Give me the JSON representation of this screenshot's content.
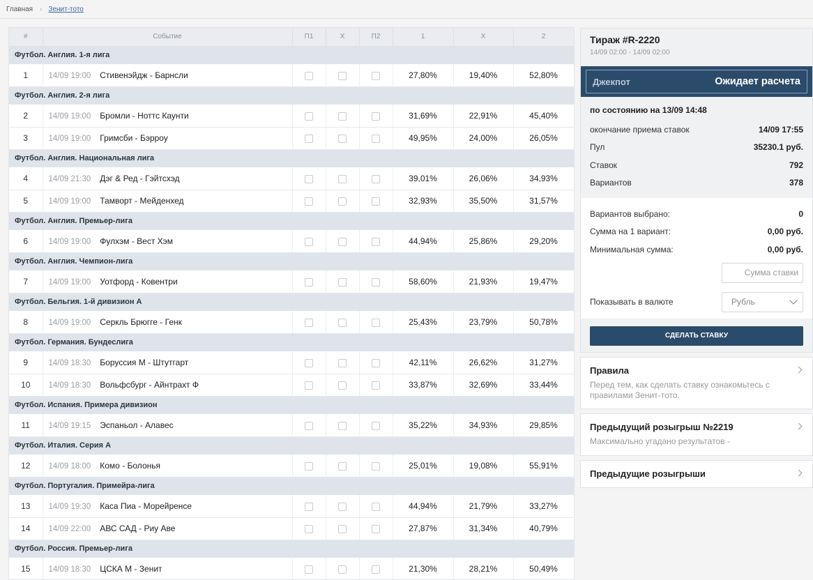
{
  "breadcrumb": {
    "home": "Главная",
    "current": "Зенит-тото"
  },
  "table": {
    "headers": {
      "num": "#",
      "event": "Событие",
      "p1": "П1",
      "x": "X",
      "p2": "П2",
      "c1": "1",
      "cx": "X",
      "c2": "2"
    },
    "groups": [
      {
        "title": "Футбол. Англия. 1-я лига",
        "matches": [
          {
            "n": "1",
            "time": "14/09 19:00",
            "name": "Стивенэйдж - Барнсли",
            "p1": "27,80%",
            "px": "19,40%",
            "p2": "52,80%"
          }
        ]
      },
      {
        "title": "Футбол. Англия. 2-я лига",
        "matches": [
          {
            "n": "2",
            "time": "14/09 19:00",
            "name": "Бромли - Ноттс Каунти",
            "p1": "31,69%",
            "px": "22,91%",
            "p2": "45,40%"
          },
          {
            "n": "3",
            "time": "14/09 19:00",
            "name": "Гримсби - Бэрроу",
            "p1": "49,95%",
            "px": "24,00%",
            "p2": "26,05%"
          }
        ]
      },
      {
        "title": "Футбол. Англия. Национальная лига",
        "matches": [
          {
            "n": "4",
            "time": "14/09 21:30",
            "name": "Дэг & Ред - Гэйтсхэд",
            "p1": "39,01%",
            "px": "26,06%",
            "p2": "34,93%"
          },
          {
            "n": "5",
            "time": "14/09 19:00",
            "name": "Тамворт - Мейденхед",
            "p1": "32,93%",
            "px": "35,50%",
            "p2": "31,57%"
          }
        ]
      },
      {
        "title": "Футбол. Англия. Премьер-лига",
        "matches": [
          {
            "n": "6",
            "time": "14/09 19:00",
            "name": "Фулхэм - Вест Хэм",
            "p1": "44,94%",
            "px": "25,86%",
            "p2": "29,20%"
          }
        ]
      },
      {
        "title": "Футбол. Англия. Чемпион-лига",
        "matches": [
          {
            "n": "7",
            "time": "14/09 19:00",
            "name": "Уотфорд - Ковентри",
            "p1": "58,60%",
            "px": "21,93%",
            "p2": "19,47%"
          }
        ]
      },
      {
        "title": "Футбол. Бельгия. 1-й дивизион А",
        "matches": [
          {
            "n": "8",
            "time": "14/09 19:00",
            "name": "Серкль Брюгге - Генк",
            "p1": "25,43%",
            "px": "23,79%",
            "p2": "50,78%"
          }
        ]
      },
      {
        "title": "Футбол. Германия. Бундеслига",
        "matches": [
          {
            "n": "9",
            "time": "14/09 18:30",
            "name": "Боруссия М - Штутгарт",
            "p1": "42,11%",
            "px": "26,62%",
            "p2": "31,27%"
          },
          {
            "n": "10",
            "time": "14/09 18:30",
            "name": "Вольфсбург - Айнтрахт Ф",
            "p1": "33,87%",
            "px": "32,69%",
            "p2": "33,44%"
          }
        ]
      },
      {
        "title": "Футбол. Испания. Примера дивизион",
        "matches": [
          {
            "n": "11",
            "time": "14/09 19:15",
            "name": "Эспаньол - Алавес",
            "p1": "35,22%",
            "px": "34,93%",
            "p2": "29,85%"
          }
        ]
      },
      {
        "title": "Футбол. Италия. Серия А",
        "matches": [
          {
            "n": "12",
            "time": "14/09 18:00",
            "name": "Комо - Болонья",
            "p1": "25,01%",
            "px": "19,08%",
            "p2": "55,91%"
          }
        ]
      },
      {
        "title": "Футбол. Португалия. Примейра-лига",
        "matches": [
          {
            "n": "13",
            "time": "14/09 19:30",
            "name": "Каса Пиа - Морейренсе",
            "p1": "44,94%",
            "px": "21,79%",
            "p2": "33,27%"
          },
          {
            "n": "14",
            "time": "14/09 22:00",
            "name": "АВС САД - Риу Аве",
            "p1": "27,87%",
            "px": "31,34%",
            "p2": "40,79%"
          }
        ]
      },
      {
        "title": "Футбол. Россия. Премьер-лига",
        "matches": [
          {
            "n": "15",
            "time": "14/09 18:30",
            "name": "ЦСКА М - Зенит",
            "p1": "21,30%",
            "px": "28,21%",
            "p2": "50,49%"
          }
        ]
      }
    ]
  },
  "panel": {
    "title": "Тираж #R-2220",
    "dates": "14/09 02:00 - 14/09 02:00",
    "jackpot_label": "Джекпот",
    "jackpot_value": "Ожидает расчета",
    "as_of": "по состоянию на 13/09 14:48",
    "stats": [
      {
        "k": "окончание приема ставок",
        "v": "14/09 17:55"
      },
      {
        "k": "Пул",
        "v": "35230.1 руб."
      },
      {
        "k": "Ставок",
        "v": "792"
      },
      {
        "k": "Вариантов",
        "v": "378"
      }
    ],
    "calc": [
      {
        "k": "Вариантов выбрано:",
        "v": "0"
      },
      {
        "k": "Сумма на 1 вариант:",
        "v": "0,00 руб."
      },
      {
        "k": "Минимальная сумма:",
        "v": "0,00 руб."
      }
    ],
    "stake_placeholder": "Сумма ставки",
    "currency_label": "Показывать в валюте",
    "currency_value": "Рубль",
    "bet_button": "СДЕЛАТЬ СТАВКУ"
  },
  "cards": {
    "rules_title": "Правила",
    "rules_sub": "Перед тем, как сделать ставку ознакомьтесь с правилами Зенит-тото.",
    "prev_title": "Предыдущий розыгрыш №2219",
    "prev_sub": "Максимально угадано результатов -",
    "all_prev_title": "Предыдущие розыгрыши"
  },
  "colors": {
    "accent": "#2b4b6a",
    "group_bg": "#dfe4ea",
    "link": "#3a66a8"
  }
}
